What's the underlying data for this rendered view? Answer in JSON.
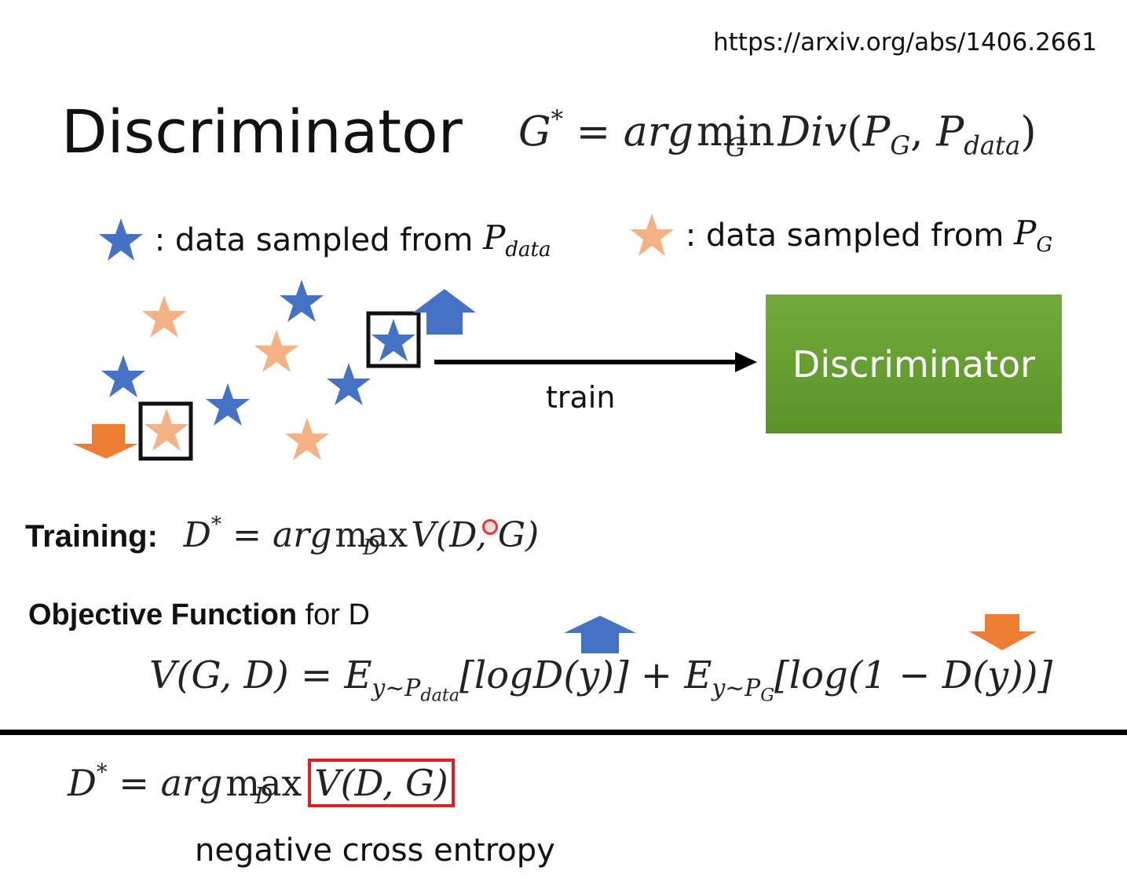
{
  "url": "https://arxiv.org/abs/1406.2661",
  "title": "Discriminator",
  "formula_g": {
    "lhs": "G",
    "star": "*",
    "eq": "=",
    "arg": "arg",
    "op": "min",
    "op_sub": "G",
    "func": "Div",
    "open": "(",
    "p1": "P",
    "p1_sub": "G",
    "comma": ",",
    "p2": "P",
    "p2_sub": "data",
    "close": ")"
  },
  "legend": {
    "real_text": ": data sampled from",
    "real_symbol": "P",
    "real_symbol_sub": "data",
    "fake_text": ": data sampled from",
    "fake_symbol": "P",
    "fake_symbol_sub": "G"
  },
  "diagram": {
    "train_label": "train",
    "box_label": "Discriminator"
  },
  "training": {
    "label": "Training:",
    "lhs": "D",
    "star": "*",
    "eq": "=",
    "arg": "arg",
    "op": "max",
    "op_sub": "D",
    "func": "V",
    "args": "(D, G)"
  },
  "objective": {
    "bold": "Objective Function",
    "rest": "for D"
  },
  "objective_formula": {
    "lhs": "V(G, D)",
    "eq": "=",
    "e1": "E",
    "e1_sub": "y~P",
    "e1_subsub": "data",
    "term1": "[logD(y)]",
    "plus": "+",
    "e2": "E",
    "e2_sub": "y~P",
    "e2_subsub": "G",
    "term2": "[log(1 − D(y))]"
  },
  "bottom": {
    "lhs": "D",
    "star": "*",
    "eq": "=",
    "arg": "arg",
    "op": "max",
    "op_sub": "D",
    "boxed": "V(D, G)",
    "caption": "negative cross entropy"
  },
  "colors": {
    "real_star": "#4472c4",
    "fake_star": "#f4b183",
    "arrow_up": "#4472c4",
    "arrow_down": "#ed7d31",
    "box_green": "#70ad47",
    "highlight_red": "#e02020"
  }
}
